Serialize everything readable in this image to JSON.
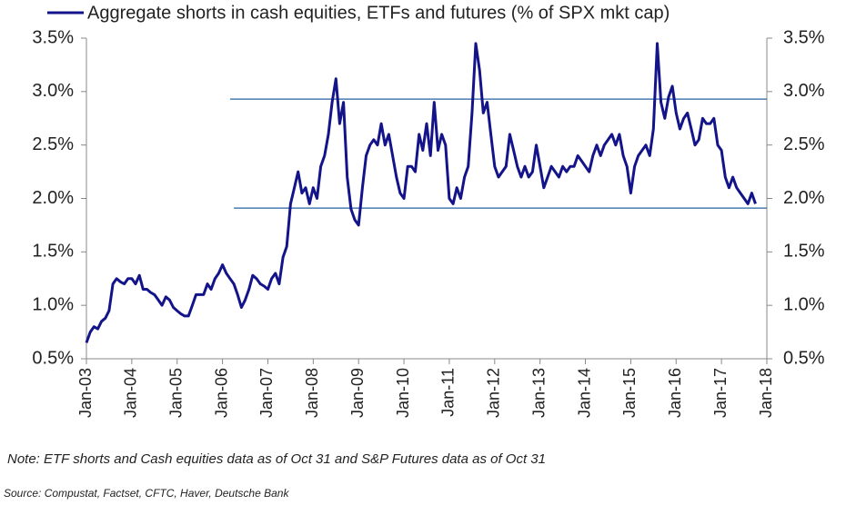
{
  "chart_data": {
    "type": "line",
    "title": "Aggregate shorts in cash equities, ETFs and futures (% of SPX mkt cap)",
    "note": "Note: ETF shorts and Cash equities data as of Oct 31 and S&P Futures data as of Oct 31",
    "source": "Source: Compustat, Factset, CFTC, Haver, Deutsche Bank",
    "x": [
      "2003-01",
      "2003-02",
      "2003-03",
      "2003-04",
      "2003-05",
      "2003-06",
      "2003-07",
      "2003-08",
      "2003-09",
      "2003-10",
      "2003-11",
      "2003-12",
      "2004-01",
      "2004-02",
      "2004-03",
      "2004-04",
      "2004-05",
      "2004-06",
      "2004-07",
      "2004-08",
      "2004-09",
      "2004-10",
      "2004-11",
      "2004-12",
      "2005-01",
      "2005-02",
      "2005-03",
      "2005-04",
      "2005-05",
      "2005-06",
      "2005-07",
      "2005-08",
      "2005-09",
      "2005-10",
      "2005-11",
      "2005-12",
      "2006-01",
      "2006-02",
      "2006-03",
      "2006-04",
      "2006-05",
      "2006-06",
      "2006-07",
      "2006-08",
      "2006-09",
      "2006-10",
      "2006-11",
      "2006-12",
      "2007-01",
      "2007-02",
      "2007-03",
      "2007-04",
      "2007-05",
      "2007-06",
      "2007-07",
      "2007-08",
      "2007-09",
      "2007-10",
      "2007-11",
      "2007-12",
      "2008-01",
      "2008-02",
      "2008-03",
      "2008-04",
      "2008-05",
      "2008-06",
      "2008-07",
      "2008-08",
      "2008-09",
      "2008-10",
      "2008-11",
      "2008-12",
      "2009-01",
      "2009-02",
      "2009-03",
      "2009-04",
      "2009-05",
      "2009-06",
      "2009-07",
      "2009-08",
      "2009-09",
      "2009-10",
      "2009-11",
      "2009-12",
      "2010-01",
      "2010-02",
      "2010-03",
      "2010-04",
      "2010-05",
      "2010-06",
      "2010-07",
      "2010-08",
      "2010-09",
      "2010-10",
      "2010-11",
      "2010-12",
      "2011-01",
      "2011-02",
      "2011-03",
      "2011-04",
      "2011-05",
      "2011-06",
      "2011-07",
      "2011-08",
      "2011-09",
      "2011-10",
      "2011-11",
      "2011-12",
      "2012-01",
      "2012-02",
      "2012-03",
      "2012-04",
      "2012-05",
      "2012-06",
      "2012-07",
      "2012-08",
      "2012-09",
      "2012-10",
      "2012-11",
      "2012-12",
      "2013-01",
      "2013-02",
      "2013-03",
      "2013-04",
      "2013-05",
      "2013-06",
      "2013-07",
      "2013-08",
      "2013-09",
      "2013-10",
      "2013-11",
      "2013-12",
      "2014-01",
      "2014-02",
      "2014-03",
      "2014-04",
      "2014-05",
      "2014-06",
      "2014-07",
      "2014-08",
      "2014-09",
      "2014-10",
      "2014-11",
      "2014-12",
      "2015-01",
      "2015-02",
      "2015-03",
      "2015-04",
      "2015-05",
      "2015-06",
      "2015-07",
      "2015-08",
      "2015-09",
      "2015-10",
      "2015-11",
      "2015-12",
      "2016-01",
      "2016-02",
      "2016-03",
      "2016-04",
      "2016-05",
      "2016-06",
      "2016-07",
      "2016-08",
      "2016-09",
      "2016-10",
      "2016-11",
      "2016-12",
      "2017-01",
      "2017-02",
      "2017-03",
      "2017-04",
      "2017-05",
      "2017-06",
      "2017-07",
      "2017-08",
      "2017-09",
      "2017-10"
    ],
    "series": [
      {
        "name": "Aggregate shorts in cash equities, ETFs and futures (% of SPX mkt cap)",
        "color": "#14148a",
        "values": [
          0.65,
          0.75,
          0.8,
          0.78,
          0.85,
          0.88,
          0.95,
          1.2,
          1.25,
          1.22,
          1.2,
          1.25,
          1.25,
          1.2,
          1.28,
          1.15,
          1.15,
          1.12,
          1.1,
          1.05,
          1.0,
          1.08,
          1.05,
          0.98,
          0.95,
          0.92,
          0.9,
          0.9,
          1.0,
          1.1,
          1.1,
          1.1,
          1.2,
          1.15,
          1.25,
          1.3,
          1.38,
          1.3,
          1.25,
          1.2,
          1.1,
          0.98,
          1.05,
          1.15,
          1.28,
          1.25,
          1.2,
          1.18,
          1.15,
          1.25,
          1.3,
          1.2,
          1.45,
          1.55,
          1.95,
          2.1,
          2.25,
          2.05,
          2.1,
          1.95,
          2.1,
          2.0,
          2.3,
          2.4,
          2.6,
          2.9,
          3.12,
          2.7,
          2.9,
          2.2,
          1.9,
          1.8,
          1.75,
          2.1,
          2.4,
          2.5,
          2.55,
          2.5,
          2.7,
          2.5,
          2.6,
          2.4,
          2.2,
          2.05,
          2.0,
          2.3,
          2.3,
          2.25,
          2.6,
          2.45,
          2.7,
          2.4,
          2.9,
          2.45,
          2.6,
          2.5,
          2.0,
          1.95,
          2.1,
          2.0,
          2.2,
          2.3,
          2.8,
          3.45,
          3.2,
          2.8,
          2.9,
          2.6,
          2.3,
          2.2,
          2.25,
          2.3,
          2.6,
          2.45,
          2.3,
          2.2,
          2.3,
          2.2,
          2.25,
          2.5,
          2.3,
          2.1,
          2.2,
          2.3,
          2.25,
          2.2,
          2.3,
          2.25,
          2.3,
          2.3,
          2.4,
          2.35,
          2.3,
          2.25,
          2.4,
          2.5,
          2.4,
          2.5,
          2.55,
          2.6,
          2.5,
          2.6,
          2.4,
          2.3,
          2.05,
          2.3,
          2.4,
          2.45,
          2.5,
          2.4,
          2.65,
          3.45,
          2.9,
          2.75,
          2.95,
          3.05,
          2.8,
          2.65,
          2.75,
          2.8,
          2.65,
          2.5,
          2.55,
          2.75,
          2.7,
          2.7,
          2.75,
          2.5,
          2.45,
          2.2,
          2.1,
          2.2,
          2.1,
          2.05,
          2.0,
          1.95,
          2.05,
          1.95
        ]
      }
    ],
    "hlines": [
      {
        "value": 2.93,
        "from": "2006-03",
        "color": "#4a7ab0"
      },
      {
        "value": 1.91,
        "from": "2006-04",
        "color": "#4a7ab0"
      }
    ],
    "xlim": [
      "2003-01",
      "2018-01"
    ],
    "xticks": [
      {
        "value": "2003-01",
        "label": "Jan-03"
      },
      {
        "value": "2004-01",
        "label": "Jan-04"
      },
      {
        "value": "2005-01",
        "label": "Jan-05"
      },
      {
        "value": "2006-01",
        "label": "Jan-06"
      },
      {
        "value": "2007-01",
        "label": "Jan-07"
      },
      {
        "value": "2008-01",
        "label": "Jan-08"
      },
      {
        "value": "2009-01",
        "label": "Jan-09"
      },
      {
        "value": "2010-01",
        "label": "Jan-10"
      },
      {
        "value": "2011-01",
        "label": "Jan-11"
      },
      {
        "value": "2012-01",
        "label": "Jan-12"
      },
      {
        "value": "2013-01",
        "label": "Jan-13"
      },
      {
        "value": "2014-01",
        "label": "Jan-14"
      },
      {
        "value": "2015-01",
        "label": "Jan-15"
      },
      {
        "value": "2016-01",
        "label": "Jan-16"
      },
      {
        "value": "2017-01",
        "label": "Jan-17"
      },
      {
        "value": "2018-01",
        "label": "Jan-18"
      }
    ],
    "ylim": [
      0.5,
      3.5
    ],
    "yticks": [
      {
        "value": 0.5,
        "label": "0.5%"
      },
      {
        "value": 1.0,
        "label": "1.0%"
      },
      {
        "value": 1.5,
        "label": "1.5%"
      },
      {
        "value": 2.0,
        "label": "2.0%"
      },
      {
        "value": 2.5,
        "label": "2.5%"
      },
      {
        "value": 3.0,
        "label": "3.0%"
      },
      {
        "value": 3.5,
        "label": "3.5%"
      }
    ],
    "y2lim": [
      0.5,
      3.5
    ],
    "y2ticks": [
      {
        "value": 0.5,
        "label": "0.5%"
      },
      {
        "value": 1.0,
        "label": "1.0%"
      },
      {
        "value": 1.5,
        "label": "1.5%"
      },
      {
        "value": 2.0,
        "label": "2.0%"
      },
      {
        "value": 2.5,
        "label": "2.5%"
      },
      {
        "value": 3.0,
        "label": "3.0%"
      },
      {
        "value": 3.5,
        "label": "3.5%"
      }
    ]
  }
}
